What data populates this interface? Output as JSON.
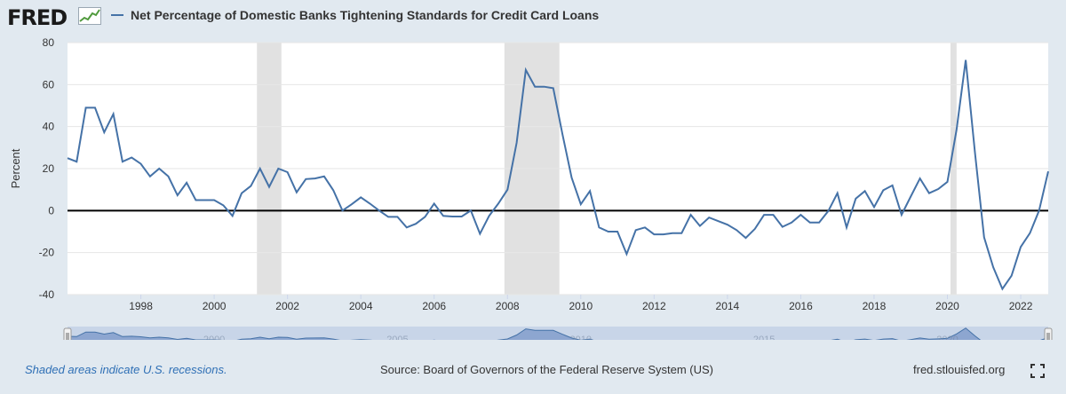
{
  "header": {
    "logo_text": "FRED",
    "legend_label": "Net Percentage of Domestic Banks Tightening Standards for Credit Card Loans"
  },
  "colors": {
    "series": "#4572a7",
    "recession": "#e1e1e1",
    "background": "#e1e9f0",
    "zero_line": "#000000",
    "link": "#2e6fb5"
  },
  "chart_data": {
    "type": "line",
    "title": "",
    "xlabel": "",
    "ylabel": "Percent",
    "ylim": [
      -40,
      80
    ],
    "y_ticks": [
      "80",
      "60",
      "40",
      "20",
      "0",
      "-20",
      "-40"
    ],
    "x_ticks": [
      "1998",
      "2000",
      "2002",
      "2004",
      "2006",
      "2008",
      "2010",
      "2012",
      "2014",
      "2016",
      "2018",
      "2020",
      "2022"
    ],
    "xlim": [
      "1996-01-01",
      "2022-10-01"
    ],
    "grid": true,
    "recessions": [
      [
        "2001-03-01",
        "2001-11-01"
      ],
      [
        "2007-12-01",
        "2009-06-01"
      ],
      [
        "2020-02-01",
        "2020-04-01"
      ]
    ],
    "series": [
      {
        "name": "Net Percentage of Domestic Banks Tightening Standards for Credit Card Loans",
        "x": [
          "1996-01-01",
          "1996-04-01",
          "1996-07-01",
          "1996-10-01",
          "1997-01-01",
          "1997-04-01",
          "1997-07-01",
          "1997-10-01",
          "1998-01-01",
          "1998-04-01",
          "1998-07-01",
          "1998-10-01",
          "1999-01-01",
          "1999-04-01",
          "1999-07-01",
          "1999-10-01",
          "2000-01-01",
          "2000-04-01",
          "2000-07-01",
          "2000-10-01",
          "2001-01-01",
          "2001-04-01",
          "2001-07-01",
          "2001-10-01",
          "2002-01-01",
          "2002-04-01",
          "2002-07-01",
          "2002-10-01",
          "2003-01-01",
          "2003-04-01",
          "2003-07-01",
          "2003-10-01",
          "2004-01-01",
          "2004-04-01",
          "2004-07-01",
          "2004-10-01",
          "2005-01-01",
          "2005-04-01",
          "2005-07-01",
          "2005-10-01",
          "2006-01-01",
          "2006-04-01",
          "2006-07-01",
          "2006-10-01",
          "2007-01-01",
          "2007-04-01",
          "2007-07-01",
          "2007-10-01",
          "2008-01-01",
          "2008-04-01",
          "2008-07-01",
          "2008-10-01",
          "2009-01-01",
          "2009-04-01",
          "2009-07-01",
          "2009-10-01",
          "2010-01-01",
          "2010-04-01",
          "2010-07-01",
          "2010-10-01",
          "2011-01-01",
          "2011-04-01",
          "2011-07-01",
          "2011-10-01",
          "2012-01-01",
          "2012-04-01",
          "2012-07-01",
          "2012-10-01",
          "2013-01-01",
          "2013-04-01",
          "2013-07-01",
          "2013-10-01",
          "2014-01-01",
          "2014-04-01",
          "2014-07-01",
          "2014-10-01",
          "2015-01-01",
          "2015-04-01",
          "2015-07-01",
          "2015-10-01",
          "2016-01-01",
          "2016-04-01",
          "2016-07-01",
          "2016-10-01",
          "2017-01-01",
          "2017-04-01",
          "2017-07-01",
          "2017-10-01",
          "2018-01-01",
          "2018-04-01",
          "2018-07-01",
          "2018-10-01",
          "2019-01-01",
          "2019-04-01",
          "2019-07-01",
          "2019-10-01",
          "2020-01-01",
          "2020-04-01",
          "2020-07-01",
          "2020-10-01",
          "2021-01-01",
          "2021-04-01",
          "2021-07-01",
          "2021-10-01",
          "2022-01-01",
          "2022-04-01",
          "2022-07-01",
          "2022-10-01"
        ],
        "values": [
          25,
          23.3,
          49,
          49,
          37.3,
          46,
          23.3,
          25.3,
          22.3,
          16.3,
          20,
          16.3,
          7.3,
          13.3,
          5,
          5,
          5,
          2.5,
          -2.5,
          8.3,
          11.7,
          20,
          11.3,
          20,
          18.3,
          8.7,
          15,
          15.3,
          16.3,
          9.7,
          0,
          3,
          6.3,
          3.3,
          0,
          -3,
          -3,
          -8,
          -6.3,
          -3,
          3.3,
          -2.5,
          -2.8,
          -2.8,
          0,
          -11,
          -2.5,
          3.3,
          10,
          32.3,
          67,
          59,
          59,
          58.3,
          36.3,
          15.7,
          3,
          9.3,
          -8,
          -10,
          -10,
          -20.7,
          -9.3,
          -8,
          -11.3,
          -11.3,
          -10.7,
          -10.7,
          -2,
          -7.3,
          -3.3,
          -5,
          -6.7,
          -9.3,
          -13,
          -8.7,
          -2,
          -2,
          -7.7,
          -5.7,
          -2,
          -5.7,
          -5.7,
          -0.2,
          8.3,
          -8,
          5.7,
          9.3,
          1.7,
          9.7,
          12,
          -2,
          6.7,
          15.3,
          8.3,
          10.3,
          13.7,
          38.5,
          71.7,
          27.7,
          -12.7,
          -27,
          -37.3,
          -31,
          -17.3,
          -10.7,
          0,
          18.7
        ]
      }
    ]
  },
  "navigator": {
    "labels": [
      "2000",
      "2005",
      "2010",
      "2015",
      "2020"
    ]
  },
  "footer": {
    "recession_note": "Shaded areas indicate U.S. recessions.",
    "source": "Source: Board of Governors of the Federal Reserve System (US)",
    "site": "fred.stlouisfed.org"
  },
  "icons": {
    "fullscreen": "fullscreen-icon",
    "logo_graph": "trend-graph-icon",
    "navigator_handle": "drag-handle-icon"
  }
}
